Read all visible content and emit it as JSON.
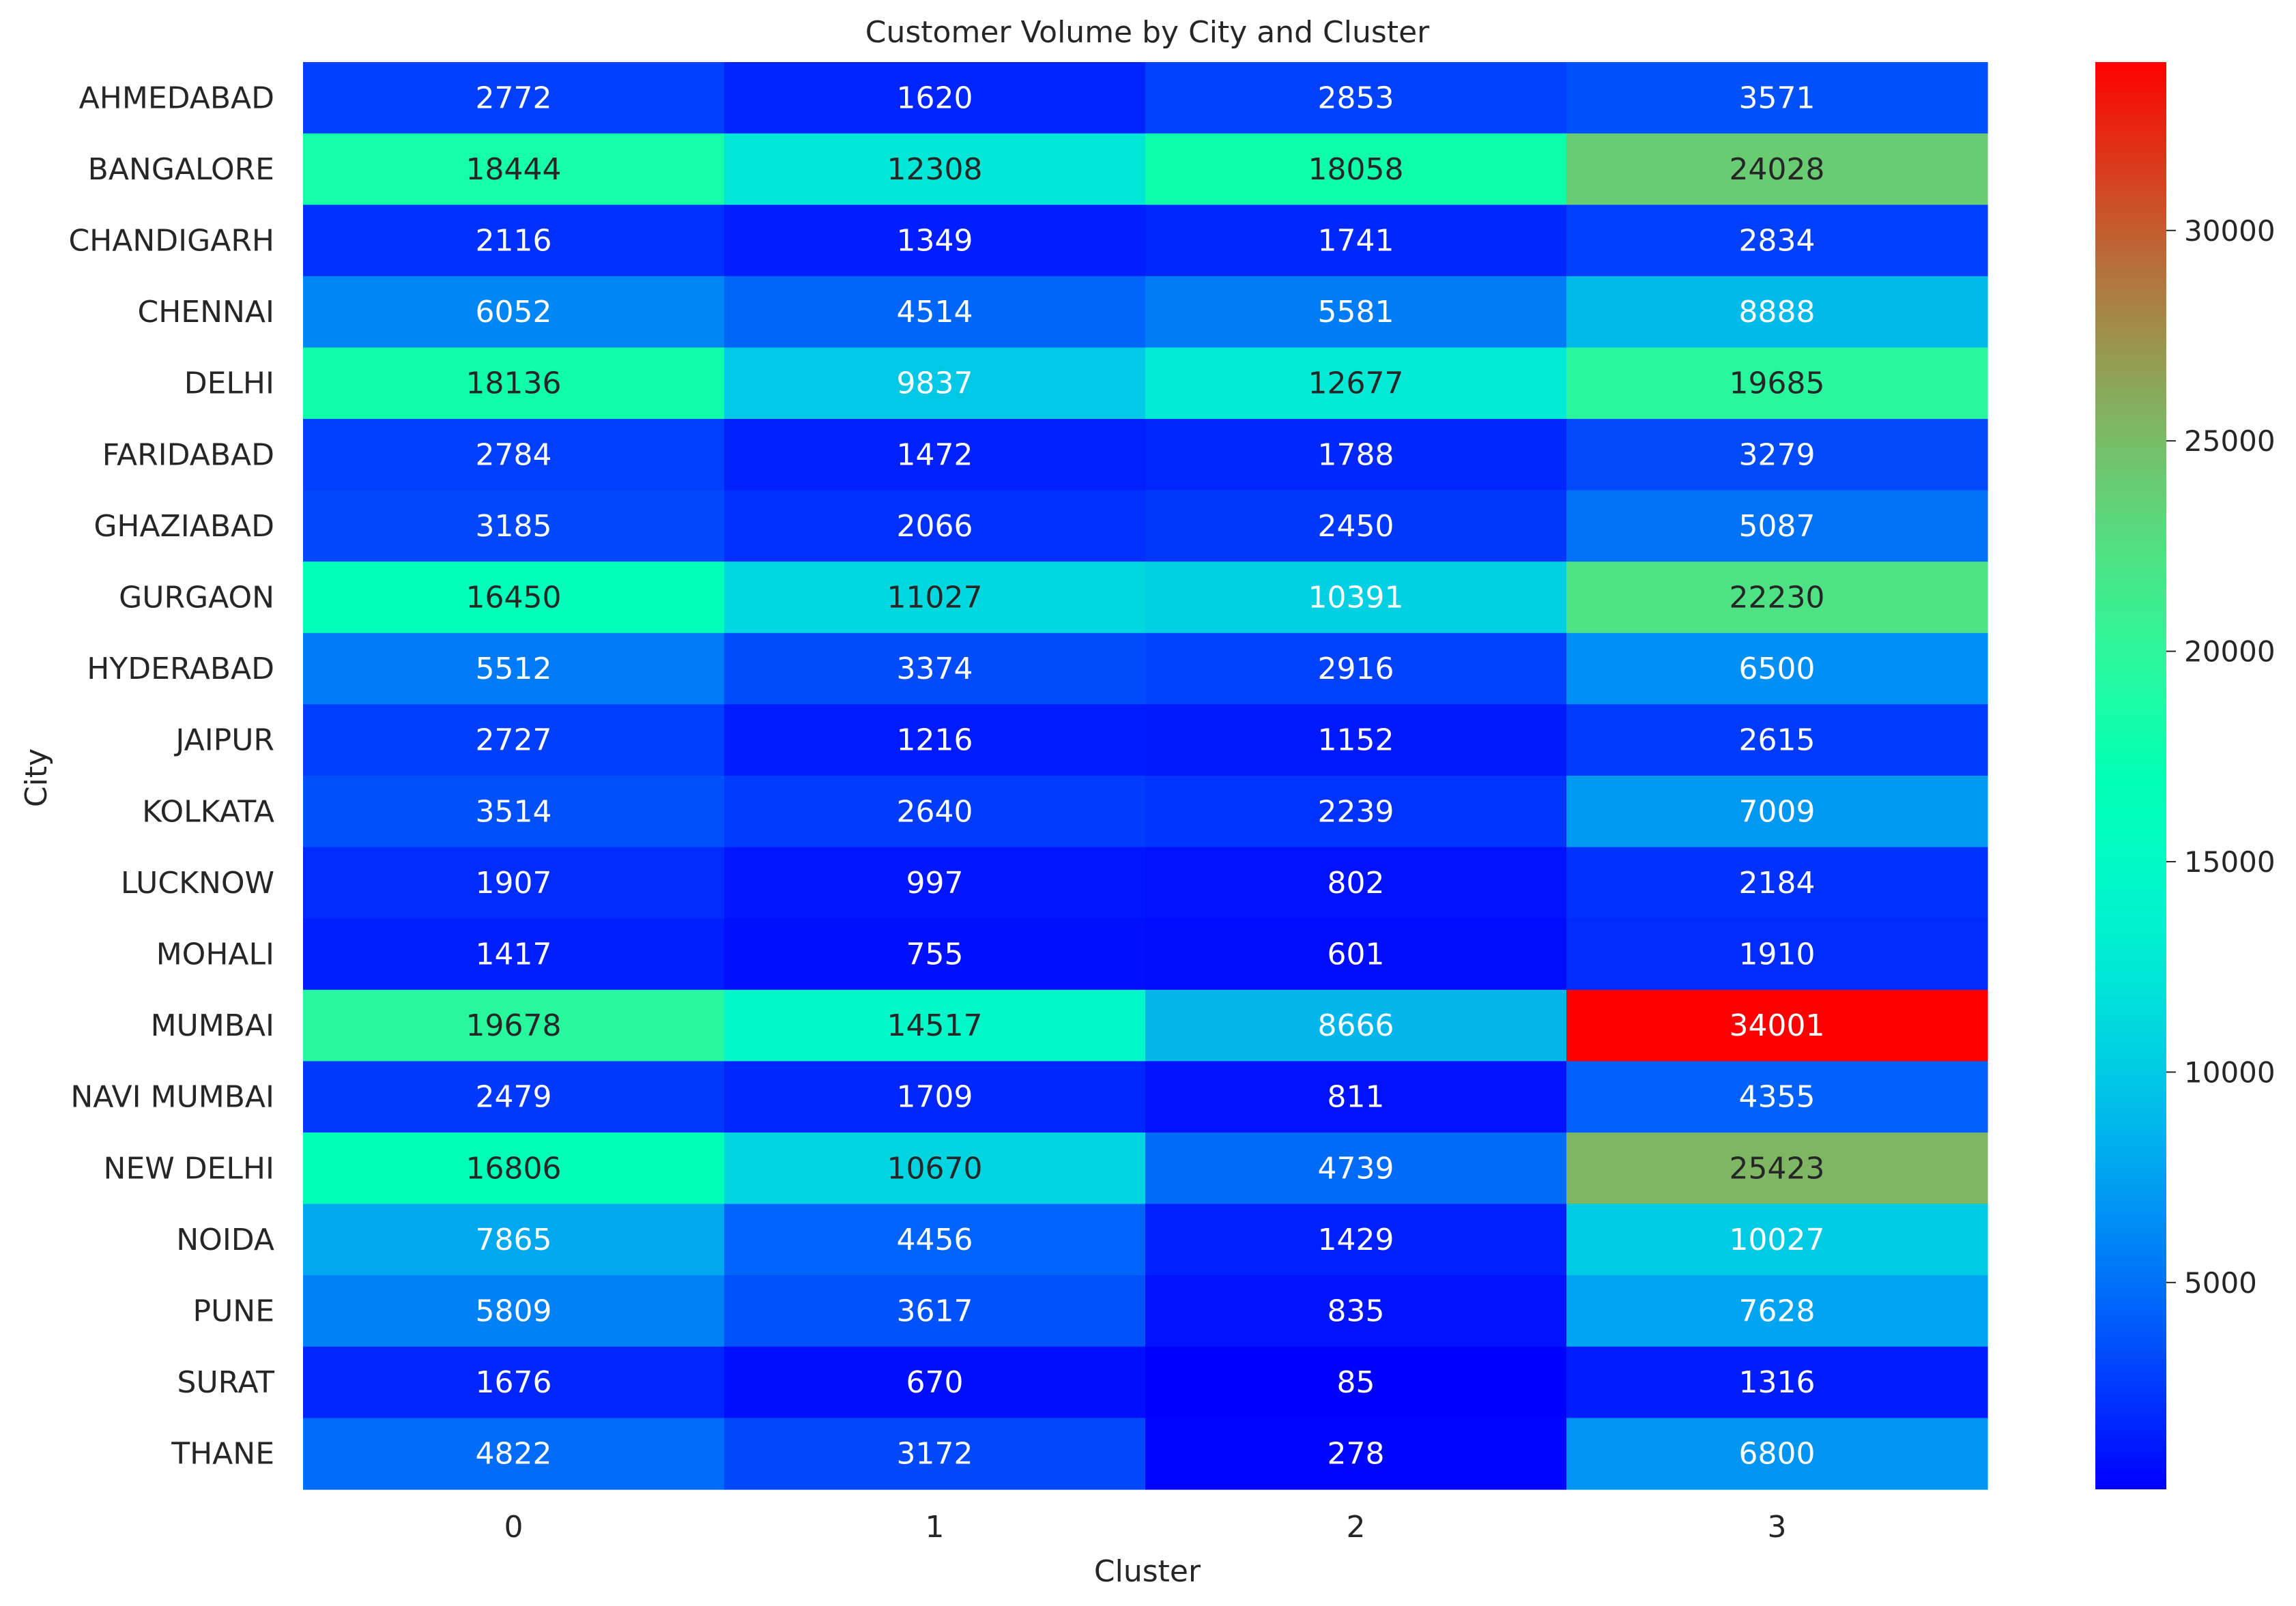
{
  "chart_data": {
    "type": "heatmap",
    "title": "Customer Volume by City and Cluster",
    "xlabel": "Cluster",
    "ylabel": "City",
    "columns": [
      "0",
      "1",
      "2",
      "3"
    ],
    "rows": [
      "AHMEDABAD",
      "BANGALORE",
      "CHANDIGARH",
      "CHENNAI",
      "DELHI",
      "FARIDABAD",
      "GHAZIABAD",
      "GURGAON",
      "HYDERABAD",
      "JAIPUR",
      "KOLKATA",
      "LUCKNOW",
      "MOHALI",
      "MUMBAI",
      "NAVI MUMBAI",
      "NEW DELHI",
      "NOIDA",
      "PUNE",
      "SURAT",
      "THANE"
    ],
    "values": [
      [
        2772,
        1620,
        2853,
        3571
      ],
      [
        18444,
        12308,
        18058,
        24028
      ],
      [
        2116,
        1349,
        1741,
        2834
      ],
      [
        6052,
        4514,
        5581,
        8888
      ],
      [
        18136,
        9837,
        12677,
        19685
      ],
      [
        2784,
        1472,
        1788,
        3279
      ],
      [
        3185,
        2066,
        2450,
        5087
      ],
      [
        16450,
        11027,
        10391,
        22230
      ],
      [
        5512,
        3374,
        2916,
        6500
      ],
      [
        2727,
        1216,
        1152,
        2615
      ],
      [
        3514,
        2640,
        2239,
        7009
      ],
      [
        1907,
        997,
        802,
        2184
      ],
      [
        1417,
        755,
        601,
        1910
      ],
      [
        19678,
        14517,
        8666,
        34001
      ],
      [
        2479,
        1709,
        811,
        4355
      ],
      [
        16806,
        10670,
        4739,
        25423
      ],
      [
        7865,
        4456,
        1429,
        10027
      ],
      [
        5809,
        3617,
        835,
        7628
      ],
      [
        1676,
        670,
        85,
        1316
      ],
      [
        4822,
        3172,
        278,
        6800
      ]
    ],
    "colormap": "rainbow",
    "vmin": 85,
    "vmax": 34001,
    "colorbar_ticks": [
      5000,
      10000,
      15000,
      20000,
      25000,
      30000
    ],
    "grid": false,
    "legend": "colorbar-right"
  }
}
